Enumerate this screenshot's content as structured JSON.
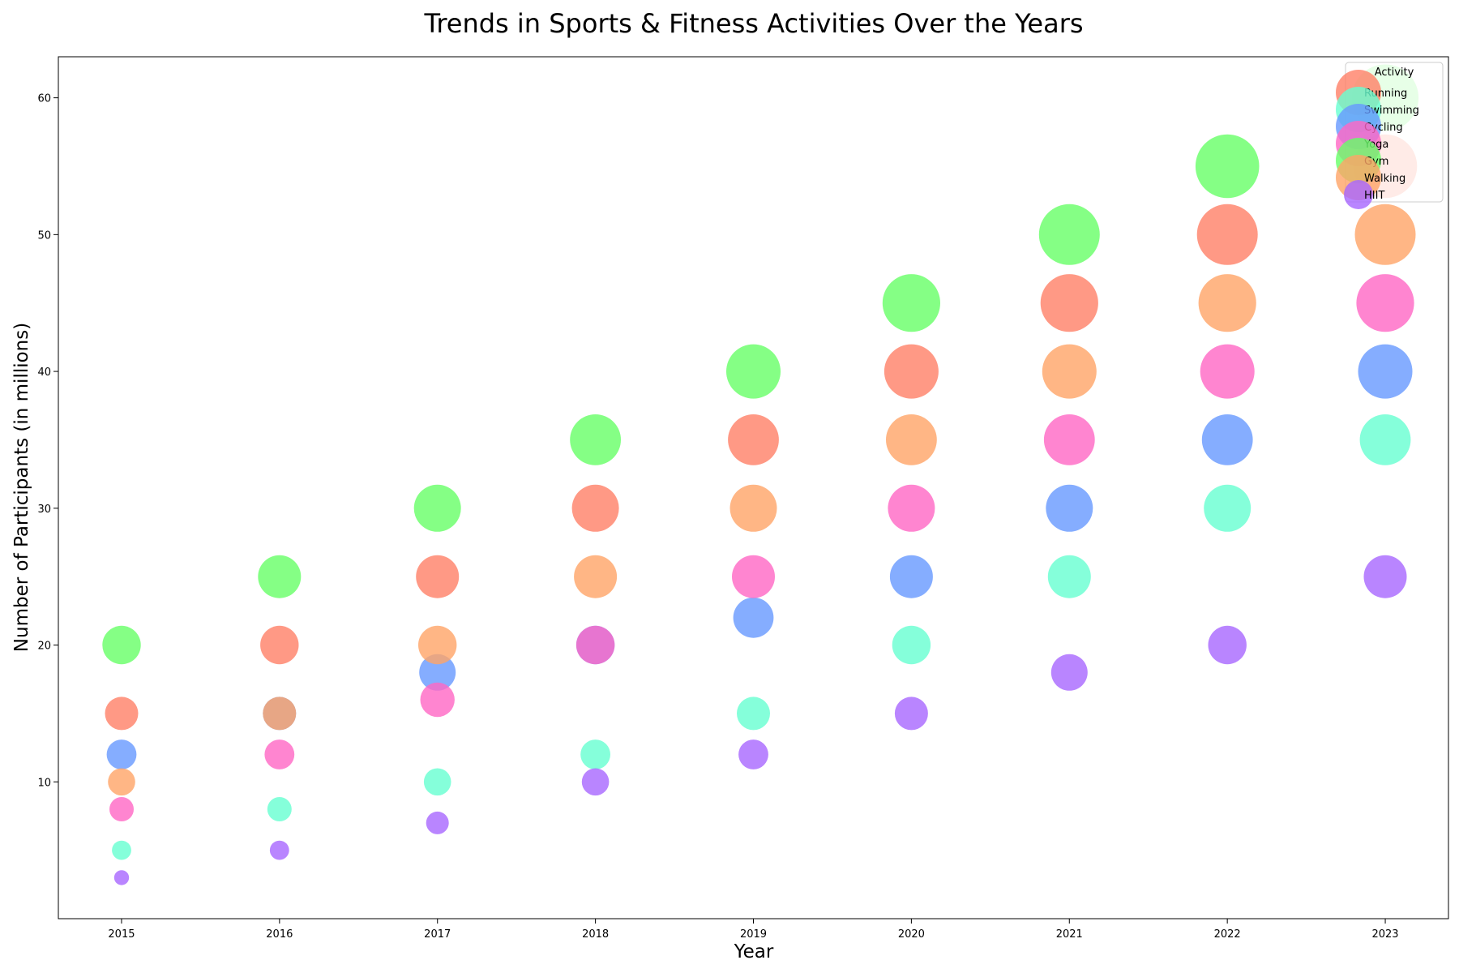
{
  "chart_data": {
    "type": "scatter",
    "title": "Trends in Sports & Fitness Activities Over the Years",
    "xlabel": "Year",
    "ylabel": "Number of Participants (in millions)",
    "x": [
      2015,
      2016,
      2017,
      2018,
      2019,
      2020,
      2021,
      2022,
      2023
    ],
    "xlim": [
      2014.6,
      2023.4
    ],
    "ylim": [
      0,
      63
    ],
    "yticks": [
      10,
      20,
      30,
      40,
      50,
      60
    ],
    "grid": false,
    "legend": {
      "title": "Activity",
      "position": "top-right"
    },
    "series": [
      {
        "name": "Running",
        "color": "#ff7f66",
        "values": [
          15,
          20,
          25,
          30,
          35,
          40,
          45,
          50,
          55
        ]
      },
      {
        "name": "Swimming",
        "color": "#66ffd1",
        "values": [
          5,
          8,
          10,
          12,
          15,
          20,
          25,
          30,
          35
        ]
      },
      {
        "name": "Cycling",
        "color": "#6699ff",
        "values": [
          12,
          15,
          18,
          20,
          22,
          25,
          30,
          35,
          40
        ]
      },
      {
        "name": "Yoga",
        "color": "#ff66c4",
        "values": [
          8,
          12,
          16,
          20,
          25,
          30,
          35,
          40,
          45
        ]
      },
      {
        "name": "Gym",
        "color": "#66ff66",
        "values": [
          20,
          25,
          30,
          35,
          40,
          45,
          50,
          55,
          60
        ]
      },
      {
        "name": "Walking",
        "color": "#ffa466",
        "values": [
          10,
          15,
          20,
          25,
          30,
          35,
          40,
          45,
          50
        ]
      },
      {
        "name": "HIIT",
        "color": "#a866ff",
        "values": [
          3,
          5,
          7,
          10,
          12,
          15,
          18,
          20,
          25
        ]
      }
    ]
  }
}
